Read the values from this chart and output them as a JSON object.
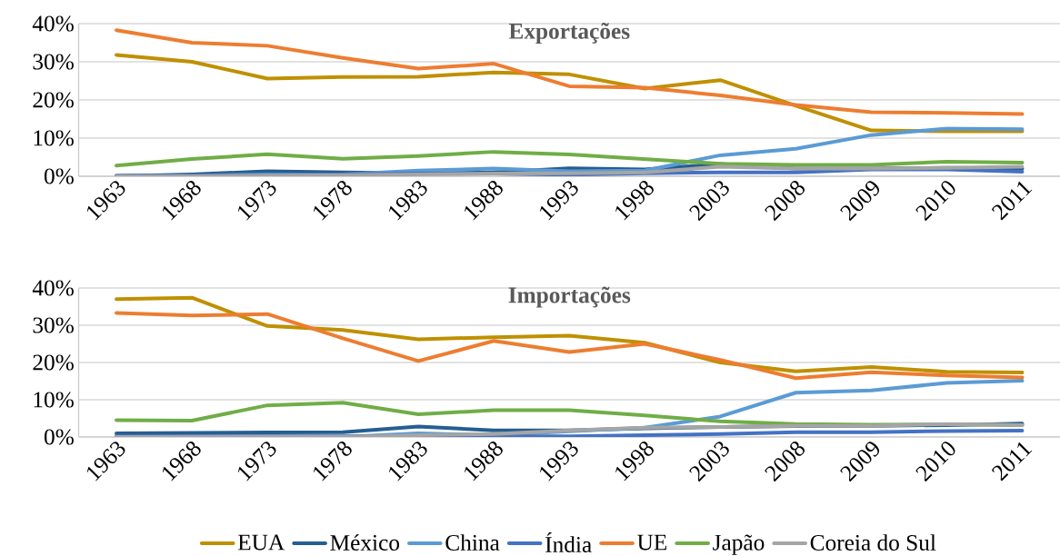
{
  "chart_data": [
    {
      "type": "line",
      "title": "Exportações",
      "categories": [
        "1963",
        "1968",
        "1973",
        "1978",
        "1983",
        "1988",
        "1993",
        "1998",
        "2003",
        "2008",
        "2009",
        "2010",
        "2011"
      ],
      "ylim": [
        0,
        40
      ],
      "yticks": [
        {
          "value": 0,
          "label": "0%"
        },
        {
          "value": 10,
          "label": "10%"
        },
        {
          "value": 20,
          "label": "20%"
        },
        {
          "value": 30,
          "label": "30%"
        },
        {
          "value": 40,
          "label": "40%"
        }
      ],
      "grid": "y",
      "legend": false,
      "series": [
        {
          "color": "#bf9000",
          "values": [
            31.8,
            30,
            25.6,
            26,
            26.1,
            27.2,
            26.7,
            23,
            25.2,
            18.5,
            12,
            11.8,
            11.8
          ]
        },
        {
          "color": "#255e91",
          "values": [
            0,
            0.5,
            1.3,
            1.0,
            0.8,
            1.0,
            2.1,
            1.8,
            3.2,
            2.0,
            2.0,
            2.2,
            2.0
          ]
        },
        {
          "color": "#5b9bd5",
          "values": [
            0,
            0.2,
            0.5,
            0.5,
            1.5,
            2,
            1.3,
            1.5,
            5.5,
            7.2,
            10.8,
            12.5,
            12.3
          ]
        },
        {
          "color": "#4472c4",
          "values": [
            0.2,
            0.2,
            0.3,
            0.5,
            0.7,
            0.7,
            0.4,
            0.8,
            1.0,
            1.0,
            1.8,
            1.8,
            1.2
          ]
        },
        {
          "color": "#ed7d31",
          "values": [
            38.3,
            35,
            34.2,
            31,
            28.2,
            29.5,
            23.6,
            23.2,
            21.2,
            18.7,
            16.8,
            16.6,
            16.3
          ]
        },
        {
          "color": "#70ad47",
          "values": [
            2.8,
            4.5,
            5.8,
            4.6,
            5.3,
            6.4,
            5.7,
            4.5,
            3.3,
            3.0,
            3.0,
            3.8,
            3.6
          ]
        },
        {
          "color": "#a5a5a5",
          "values": [
            0,
            0,
            0.2,
            0.3,
            0.5,
            0.7,
            0.8,
            1.0,
            2.5,
            2.0,
            2.0,
            2.2,
            2.5
          ]
        }
      ]
    },
    {
      "type": "line",
      "title": "Importações",
      "categories": [
        "1963",
        "1968",
        "1973",
        "1978",
        "1983",
        "1988",
        "1993",
        "1998",
        "2003",
        "2008",
        "2009",
        "2010",
        "2011"
      ],
      "ylim": [
        0,
        40
      ],
      "yticks": [
        {
          "value": 0,
          "label": "0%"
        },
        {
          "value": 10,
          "label": "10%"
        },
        {
          "value": 20,
          "label": "20%"
        },
        {
          "value": 30,
          "label": "30%"
        },
        {
          "value": 40,
          "label": "40%"
        }
      ],
      "grid": "y",
      "legend": "bottom",
      "series": [
        {
          "name": "EUA",
          "color": "#bf9000",
          "values": [
            37,
            37.4,
            29.8,
            28.7,
            26.2,
            26.8,
            27.2,
            25.3,
            20.0,
            17.6,
            18.8,
            17.5,
            17.3
          ]
        },
        {
          "name": "México",
          "color": "#255e91",
          "values": [
            1.0,
            1.1,
            1.2,
            1.3,
            2.8,
            1.8,
            1.8,
            2.3,
            2.7,
            2.9,
            3.0,
            3.2,
            3.6
          ]
        },
        {
          "name": "China",
          "color": "#5b9bd5",
          "values": [
            0,
            0,
            0,
            0,
            1,
            0.5,
            1.5,
            2.5,
            5.5,
            11.9,
            12.5,
            14.5,
            15.1
          ]
        },
        {
          "name": "Índia",
          "color": "#4472c4",
          "values": [
            0.2,
            0.2,
            0.2,
            0.2,
            0.2,
            0.2,
            0.2,
            0.5,
            0.8,
            1.3,
            1.3,
            1.6,
            1.7
          ]
        },
        {
          "name": "UE",
          "color": "#ed7d31",
          "values": [
            33.3,
            32.6,
            33.0,
            26.5,
            20.4,
            25.8,
            22.8,
            25.0,
            20.7,
            15.8,
            17.4,
            16.5,
            16.0
          ]
        },
        {
          "name": "Japão",
          "color": "#70ad47",
          "values": [
            4.5,
            4.4,
            8.5,
            9.2,
            6.1,
            7.2,
            7.2,
            5.8,
            4.2,
            3.5,
            3.3,
            3.4,
            3.2
          ]
        },
        {
          "name": "Coreia do Sul",
          "color": "#a5a5a5",
          "values": [
            0,
            0,
            0,
            0,
            0.5,
            0.8,
            1.8,
            2.5,
            2.7,
            3.0,
            3.0,
            3.5,
            3.2
          ]
        }
      ]
    }
  ]
}
